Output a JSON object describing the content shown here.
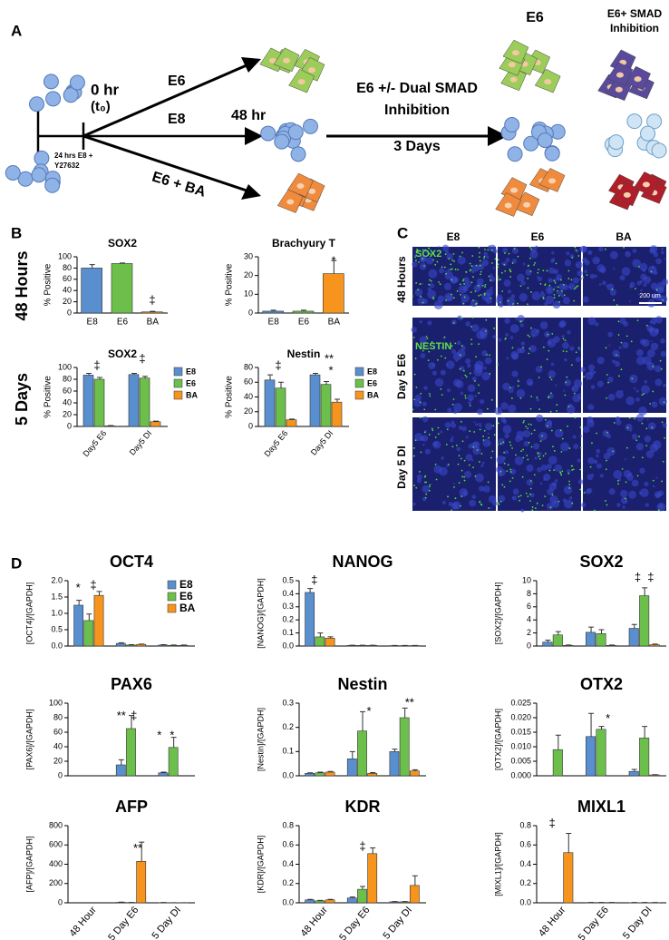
{
  "panel_a": {
    "label": "A",
    "start": "0 hr",
    "start_sub": "(t₀)",
    "pre1": "24 hrs E8 +",
    "pre2": "Y27632",
    "arm1": "E6",
    "arm2": "E8",
    "arm3": "E6 + BA",
    "mid": "48 hr",
    "step1": "E6 +/- Dual SMAD",
    "step2": "Inhibition",
    "step3": "3 Days",
    "end1": "E6",
    "end2a": "E6+ SMAD",
    "end2b": "Inhibition"
  },
  "panel_b": {
    "label": "B",
    "rows": [
      "48 Hours",
      "5 Days"
    ]
  },
  "panel_c": {
    "label": "C",
    "columns": [
      "E8",
      "E6",
      "BA"
    ],
    "rows": [
      "48 Hours",
      "Day 5 E6",
      "Day 5 DI"
    ],
    "stain1": "SOX2",
    "stain2": "NESTIN",
    "scale": "200 um"
  },
  "panel_d": {
    "label": "D"
  },
  "chart_data": [
    {
      "type": "bar",
      "title": "SOX2",
      "ylabel": "% Positive",
      "categories": [
        "E8",
        "E6",
        "BA"
      ],
      "values": [
        80,
        88,
        2
      ],
      "errors": [
        6,
        1,
        1
      ],
      "colors": [
        "#5a8fcf",
        "#6dbf4b",
        "#f7941d"
      ],
      "ylim": [
        0,
        100
      ],
      "yticks": [
        0,
        20,
        40,
        60,
        80,
        100
      ],
      "annotations": [
        "‡"
      ]
    },
    {
      "type": "bar",
      "title": "Brachyury T",
      "ylabel": "% Positive",
      "categories": [
        "E8",
        "E6",
        "BA"
      ],
      "values": [
        1,
        1,
        21
      ],
      "errors": [
        0.5,
        0.5,
        7
      ],
      "colors": [
        "#5a8fcf",
        "#6dbf4b",
        "#f7941d"
      ],
      "ylim": [
        0,
        30
      ],
      "yticks": [
        0,
        10,
        20,
        30
      ],
      "annotations": [
        "*"
      ]
    },
    {
      "type": "bar",
      "title": "SOX2",
      "ylabel": "% Positive",
      "categories": [
        "Day5 E6",
        "Day5 DI"
      ],
      "series": [
        {
          "name": "E8",
          "color": "#5a8fcf",
          "values": [
            87,
            88
          ],
          "errors": [
            3,
            2
          ]
        },
        {
          "name": "E6",
          "color": "#6dbf4b",
          "values": [
            80,
            82
          ],
          "errors": [
            3,
            3
          ]
        },
        {
          "name": "BA",
          "color": "#f7941d",
          "values": [
            1,
            8
          ],
          "errors": [
            0.5,
            1
          ]
        }
      ],
      "ylim": [
        0,
        100
      ],
      "yticks": [
        0,
        20,
        40,
        60,
        80,
        100
      ],
      "annotations": [
        "‡",
        "‡"
      ]
    },
    {
      "type": "bar",
      "title": "Nestin",
      "ylabel": "% Positive",
      "categories": [
        "Day5 E6",
        "Day5 DI"
      ],
      "series": [
        {
          "name": "E8",
          "color": "#5a8fcf",
          "values": [
            63,
            70
          ],
          "errors": [
            7,
            2
          ]
        },
        {
          "name": "E6",
          "color": "#6dbf4b",
          "values": [
            52,
            57
          ],
          "errors": [
            8,
            4
          ]
        },
        {
          "name": "BA",
          "color": "#f7941d",
          "values": [
            9,
            33
          ],
          "errors": [
            1,
            4
          ]
        }
      ],
      "ylim": [
        0,
        80
      ],
      "yticks": [
        0,
        20,
        40,
        60,
        80
      ],
      "annotations": [
        "‡",
        "**",
        "*"
      ]
    },
    {
      "type": "bar",
      "title": "OCT4",
      "ylabel": "[OCT4]/[GAPDH]",
      "series": [
        {
          "name": "E8",
          "color": "#5a8fcf",
          "values": [
            1.25,
            0.08,
            0.03
          ],
          "errors": [
            0.15,
            0.02,
            0.01
          ]
        },
        {
          "name": "E6",
          "color": "#6dbf4b",
          "values": [
            0.78,
            0.03,
            0.02
          ],
          "errors": [
            0.2,
            0.01,
            0.01
          ]
        },
        {
          "name": "BA",
          "color": "#f7941d",
          "values": [
            1.55,
            0.05,
            0.02
          ],
          "errors": [
            0.12,
            0.01,
            0.01
          ]
        }
      ],
      "ylim": [
        0,
        2
      ],
      "yticks": [
        {
          "value": 0,
          "label": "0.0"
        },
        0.5,
        {
          "value": 1,
          "label": "1.0"
        },
        1.5,
        {
          "value": 2,
          "label": "2.0"
        }
      ],
      "annotations": [
        "*",
        "‡"
      ]
    },
    {
      "type": "bar",
      "title": "NANOG",
      "ylabel": "[NANOG]/[GAPDH]",
      "series": [
        {
          "color": "#5a8fcf",
          "values": [
            0.41,
            0.005,
            0.003
          ],
          "errors": [
            0.03,
            0.001,
            0.001
          ]
        },
        {
          "color": "#6dbf4b",
          "values": [
            0.07,
            0.005,
            0.003
          ],
          "errors": [
            0.03,
            0.001,
            0.001
          ]
        },
        {
          "color": "#f7941d",
          "values": [
            0.06,
            0.005,
            0.003
          ],
          "errors": [
            0.01,
            0.001,
            0.001
          ]
        }
      ],
      "ylim": [
        0,
        0.5
      ],
      "yticks": [
        {
          "value": 0,
          "label": "0.0"
        },
        0.1,
        0.2,
        0.3,
        0.4,
        0.5
      ],
      "annotations": [
        "‡"
      ]
    },
    {
      "type": "bar",
      "title": "SOX2",
      "ylabel": "[SOX2]/[GAPDH]",
      "series": [
        {
          "color": "#5a8fcf",
          "values": [
            0.6,
            2.1,
            2.7
          ],
          "errors": [
            0.3,
            0.8,
            0.6
          ]
        },
        {
          "color": "#6dbf4b",
          "values": [
            1.7,
            1.9,
            7.7
          ],
          "errors": [
            0.5,
            0.6,
            1.2
          ]
        },
        {
          "color": "#f7941d",
          "values": [
            0.1,
            0.1,
            0.2
          ],
          "errors": [
            0.05,
            0.05,
            0.1
          ]
        }
      ],
      "ylim": [
        0,
        10
      ],
      "yticks": [
        0,
        2,
        4,
        6,
        8,
        10
      ],
      "annotations": [
        "‡",
        "‡"
      ]
    },
    {
      "type": "bar",
      "title": "PAX6",
      "ylabel": "[PAX6]/[GAPDH]",
      "series": [
        {
          "color": "#5a8fcf",
          "values": [
            0,
            15,
            4
          ],
          "errors": [
            0,
            7,
            1
          ]
        },
        {
          "color": "#6dbf4b",
          "values": [
            0,
            65,
            39
          ],
          "errors": [
            0,
            18,
            14
          ]
        },
        {
          "color": "#f7941d",
          "values": [
            0,
            0,
            0
          ],
          "errors": [
            0,
            0,
            0
          ]
        }
      ],
      "ylim": [
        0,
        100
      ],
      "yticks": [
        0,
        20,
        40,
        60,
        80,
        100
      ],
      "annotations": [
        "**",
        "‡",
        "*",
        "*"
      ]
    },
    {
      "type": "bar",
      "title": "Nestin",
      "ylabel": "[Nestin]/[GAPDH]",
      "series": [
        {
          "color": "#5a8fcf",
          "values": [
            0.01,
            0.07,
            0.1
          ],
          "errors": [
            0.002,
            0.03,
            0.01
          ]
        },
        {
          "color": "#6dbf4b",
          "values": [
            0.012,
            0.185,
            0.24
          ],
          "errors": [
            0.003,
            0.08,
            0.04
          ]
        },
        {
          "color": "#f7941d",
          "values": [
            0.015,
            0.01,
            0.02
          ],
          "errors": [
            0.003,
            0.003,
            0.005
          ]
        }
      ],
      "ylim": [
        0,
        0.3
      ],
      "yticks": [
        {
          "value": 0,
          "label": "0.0"
        },
        0.1,
        0.2,
        0.3
      ],
      "annotations": [
        "*",
        "**"
      ]
    },
    {
      "type": "bar",
      "title": "OTX2",
      "ylabel": "[OTX2]/[GAPDH]",
      "series": [
        {
          "color": "#5a8fcf",
          "values": [
            0,
            0.0135,
            0.0015
          ],
          "errors": [
            0,
            0.008,
            0.0007
          ]
        },
        {
          "color": "#6dbf4b",
          "values": [
            0.009,
            0.016,
            0.013
          ],
          "errors": [
            0.005,
            0.001,
            0.004
          ]
        },
        {
          "color": "#f7941d",
          "values": [
            0,
            0,
            0.0003
          ],
          "errors": [
            0,
            0,
            0.0001
          ]
        }
      ],
      "ylim": [
        0,
        0.025
      ],
      "yticks": [
        {
          "value": 0,
          "label": "0.000"
        },
        {
          "value": 0.005,
          "label": "0.005"
        },
        {
          "value": 0.01,
          "label": "0.010"
        },
        {
          "value": 0.015,
          "label": "0.015"
        },
        {
          "value": 0.02,
          "label": "0.020"
        },
        {
          "value": 0.025,
          "label": "0.025"
        }
      ],
      "annotations": [
        "*"
      ]
    },
    {
      "type": "bar",
      "title": "AFP",
      "ylabel": "[AFP]/[GAPDH]",
      "categories": [
        "48 Hour",
        "5 Day E6",
        "5 Day DI"
      ],
      "series": [
        {
          "color": "#5a8fcf",
          "values": [
            0,
            5,
            2
          ],
          "errors": [
            0,
            2,
            1
          ]
        },
        {
          "color": "#6dbf4b",
          "values": [
            0,
            3,
            1
          ],
          "errors": [
            0,
            1,
            0.5
          ]
        },
        {
          "color": "#f7941d",
          "values": [
            0,
            430,
            1
          ],
          "errors": [
            0,
            200,
            0.5
          ]
        }
      ],
      "ylim": [
        0,
        800
      ],
      "yticks": [
        0,
        200,
        400,
        600,
        800
      ],
      "annotations": [
        "**"
      ]
    },
    {
      "type": "bar",
      "title": "KDR",
      "ylabel": "[KDR]/[GAPDH]",
      "categories": [
        "48 Hour",
        "5 Day E6",
        "5 Day DI"
      ],
      "series": [
        {
          "color": "#5a8fcf",
          "values": [
            0.03,
            0.05,
            0.01
          ],
          "errors": [
            0.005,
            0.01,
            0.003
          ]
        },
        {
          "color": "#6dbf4b",
          "values": [
            0.02,
            0.14,
            0.01
          ],
          "errors": [
            0.005,
            0.03,
            0.003
          ]
        },
        {
          "color": "#f7941d",
          "values": [
            0.03,
            0.51,
            0.18
          ],
          "errors": [
            0.005,
            0.06,
            0.1
          ]
        }
      ],
      "ylim": [
        0,
        0.8
      ],
      "yticks": [
        {
          "value": 0,
          "label": "0.0"
        },
        0.2,
        0.4,
        0.6,
        0.8
      ],
      "annotations": [
        "‡"
      ]
    },
    {
      "type": "bar",
      "title": "MIXL1",
      "ylabel": "[MIXL1]/[GAPDH]",
      "categories": [
        "48 Hour",
        "5 Day E6",
        "5 Day DI"
      ],
      "series": [
        {
          "color": "#5a8fcf",
          "values": [
            0,
            0.003,
            0.002
          ],
          "errors": [
            0,
            0.001,
            0.001
          ]
        },
        {
          "color": "#6dbf4b",
          "values": [
            0,
            0.003,
            0.002
          ],
          "errors": [
            0,
            0.001,
            0.001
          ]
        },
        {
          "color": "#f7941d",
          "values": [
            0.52,
            0.003,
            0.002
          ],
          "errors": [
            0.2,
            0.001,
            0.001
          ]
        }
      ],
      "ylim": [
        0,
        0.8
      ],
      "yticks": [
        {
          "value": 0,
          "label": "0.0"
        },
        0.2,
        0.4,
        0.6,
        0.8
      ],
      "annotations": [
        "‡"
      ]
    }
  ]
}
